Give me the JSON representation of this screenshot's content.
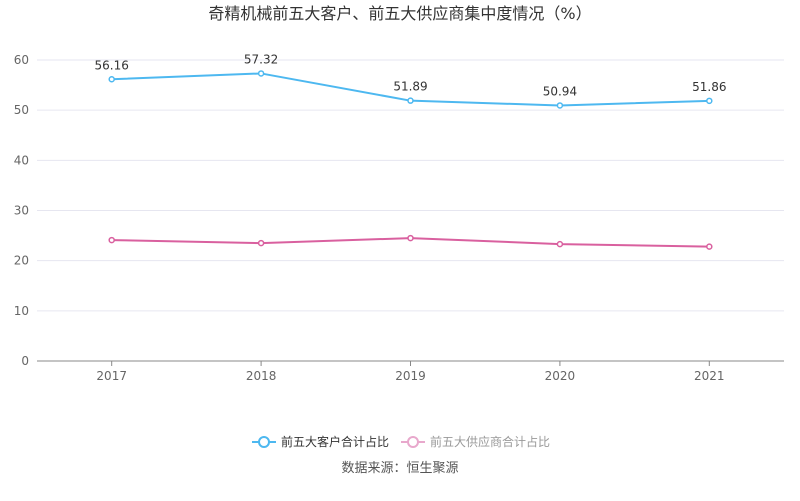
{
  "chart_data": {
    "type": "line",
    "title": "奇精机械前五大客户、前五大供应商集中度情况（%）",
    "categories": [
      "2017",
      "2018",
      "2019",
      "2020",
      "2021"
    ],
    "ylim": [
      0,
      60
    ],
    "yticks": [
      0,
      10,
      20,
      30,
      40,
      50,
      60
    ],
    "grid": true,
    "legend_position": "bottom",
    "series": [
      {
        "name": "前五大客户合计占比",
        "color": "#4db8f0",
        "values": [
          56.16,
          57.32,
          51.89,
          50.94,
          51.86
        ],
        "labels": [
          "56.16",
          "57.32",
          "51.89",
          "50.94",
          "51.86"
        ]
      },
      {
        "name": "前五大供应商合计占比",
        "color": "#d9609f",
        "values": [
          24.1,
          23.5,
          24.5,
          23.3,
          22.8
        ]
      }
    ],
    "source": "数据来源：恒生聚源"
  }
}
